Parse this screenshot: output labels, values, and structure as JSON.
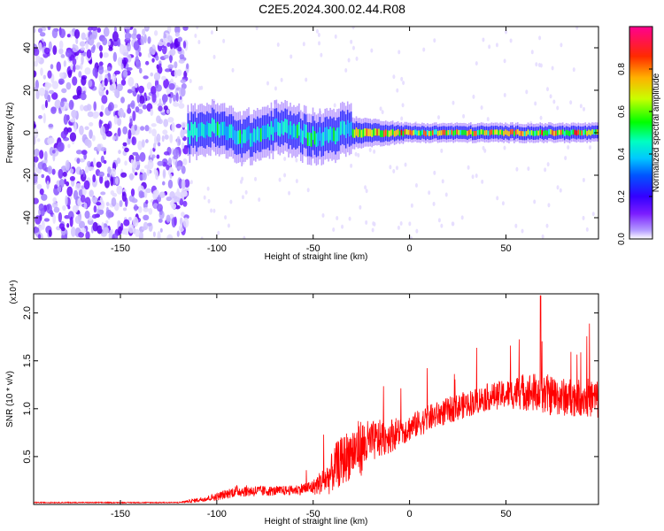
{
  "title": "C2E5.2024.300.02.44.R08",
  "chart_data": [
    {
      "type": "heatmap",
      "xlabel": "Height of straight line (km)",
      "ylabel": "Frequency (Hz)",
      "xlim": [
        -195,
        98
      ],
      "ylim": [
        -50,
        50
      ],
      "x_ticks": [
        -150,
        -100,
        -50,
        0,
        50
      ],
      "y_ticks": [
        -40,
        -20,
        0,
        20,
        40
      ],
      "colorbar": {
        "label": "Normalized spectral amplitude",
        "range": [
          0,
          1
        ],
        "ticks": [
          "0.0",
          "0.2",
          "0.4",
          "0.6",
          "0.8"
        ],
        "tick_values": [
          0.0,
          0.2,
          0.4,
          0.6,
          0.8
        ],
        "colors": [
          "#ffffff",
          "#a08cff",
          "#6a00ff",
          "#0000ff",
          "#00aaff",
          "#00ffd0",
          "#00ff00",
          "#ccff00",
          "#ffcc00",
          "#ff6600",
          "#ff0000",
          "#ff0099"
        ]
      },
      "features": {
        "noise_region_x": [
          -195,
          -115
        ],
        "signal_band_center_hz": 0,
        "signal_band_halfwidth_hz": [
          8,
          3
        ]
      }
    },
    {
      "type": "line",
      "xlabel": "Height of straight line (km)",
      "ylabel": "SNR (10 * v/v)",
      "multiplier": "(x10⁴)",
      "xlim": [
        -195,
        98
      ],
      "ylim": [
        0,
        2.2
      ],
      "x_ticks": [
        -150,
        -100,
        -50,
        0,
        50
      ],
      "y_ticks": [
        0.5,
        1.0,
        1.5,
        2.0
      ],
      "y_tick_labels": [
        "0.5",
        "1.0",
        "1.5",
        "2.0"
      ],
      "color": "#ff0000",
      "x": [
        -195,
        -150,
        -120,
        -112,
        -100,
        -90,
        -80,
        -70,
        -60,
        -50,
        -42,
        -38,
        -30,
        -25,
        -20,
        -10,
        0,
        10,
        20,
        30,
        40,
        50,
        60,
        70,
        80,
        90,
        98
      ],
      "mean": [
        0.02,
        0.02,
        0.02,
        0.04,
        0.08,
        0.14,
        0.14,
        0.14,
        0.15,
        0.18,
        0.28,
        0.4,
        0.55,
        0.6,
        0.65,
        0.72,
        0.8,
        0.9,
        0.98,
        1.05,
        1.12,
        1.15,
        1.18,
        1.15,
        1.12,
        1.12,
        1.1
      ],
      "spread": [
        0.005,
        0.005,
        0.005,
        0.02,
        0.04,
        0.06,
        0.06,
        0.05,
        0.05,
        0.08,
        0.18,
        0.25,
        0.28,
        0.3,
        0.22,
        0.18,
        0.14,
        0.14,
        0.14,
        0.14,
        0.14,
        0.15,
        0.2,
        0.22,
        0.2,
        0.2,
        0.22
      ],
      "peak": {
        "x": 68,
        "y": 2.18
      }
    }
  ]
}
